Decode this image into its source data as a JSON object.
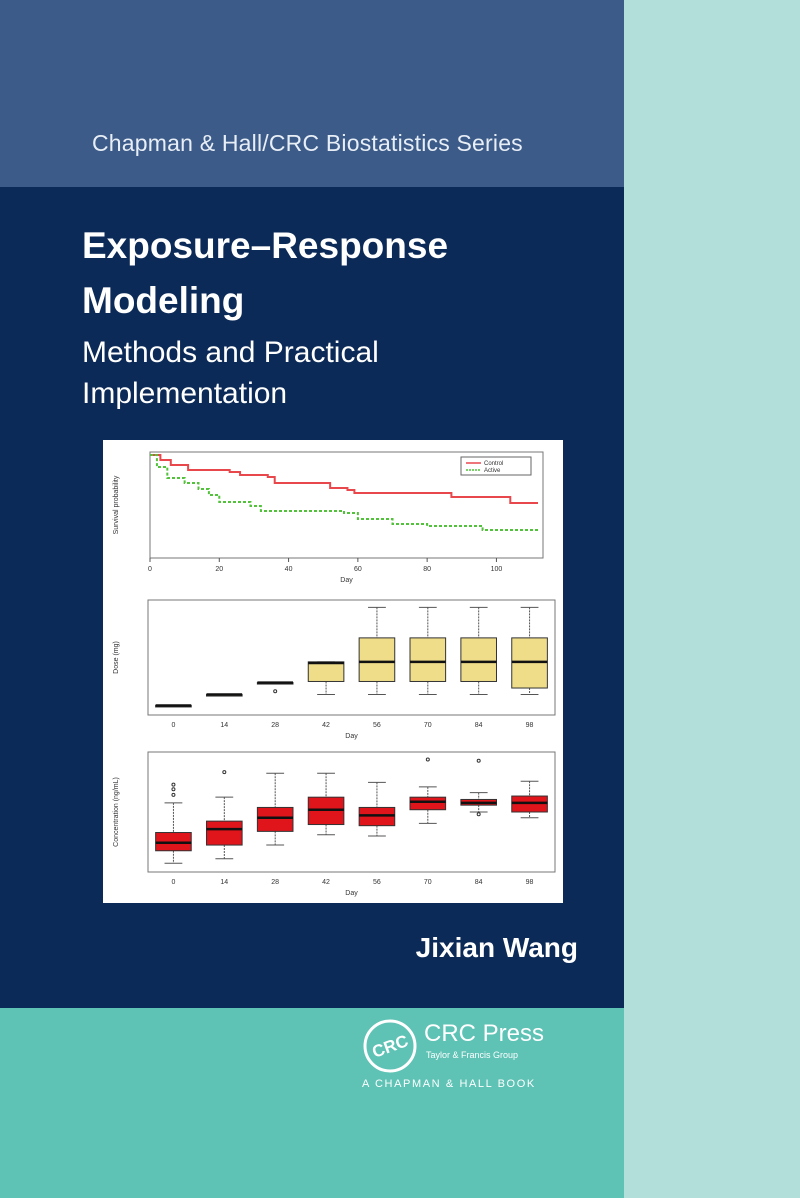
{
  "series": "Chapman & Hall/CRC Biostatistics Series",
  "title_line1": "Exposure–Response",
  "title_line2": "Modeling",
  "subtitle_line1": "Methods and Practical",
  "subtitle_line2": "Implementation",
  "author": "Jixian Wang",
  "publisher": {
    "name": "CRC Press",
    "tagline": "Taylor & Francis Group",
    "imprint": "A CHAPMAN & HALL BOOK",
    "logo_text": "CRC"
  },
  "colors": {
    "top_band": "#3c5b88",
    "navy": "#0c2a57",
    "teal": "#5ec2b5",
    "strip": "#b3dfdb",
    "control": "#e8474c",
    "active": "#52c23a",
    "dose_box": "#efdd8a",
    "conc_box": "#e0141b"
  },
  "chart_data": [
    {
      "type": "line",
      "xlabel": "Day",
      "ylabel": "Survival probability",
      "xticks": [
        0,
        20,
        40,
        60,
        80,
        100
      ],
      "xlim": [
        0,
        112
      ],
      "ylim": [
        0,
        1
      ],
      "legend": "top-right",
      "series": [
        {
          "name": "Control",
          "step": [
            [
              0,
              1
            ],
            [
              3,
              0.95
            ],
            [
              6,
              0.9
            ],
            [
              11,
              0.85
            ],
            [
              23,
              0.83
            ],
            [
              26,
              0.8
            ],
            [
              34,
              0.78
            ],
            [
              36,
              0.72
            ],
            [
              52,
              0.67
            ],
            [
              57,
              0.65
            ],
            [
              59,
              0.62
            ],
            [
              84,
              0.62
            ],
            [
              87,
              0.58
            ],
            [
              99,
              0.58
            ],
            [
              104,
              0.52
            ],
            [
              112,
              0.52
            ]
          ]
        },
        {
          "name": "Active",
          "step": [
            [
              0,
              1
            ],
            [
              2,
              0.88
            ],
            [
              5,
              0.77
            ],
            [
              10,
              0.72
            ],
            [
              14,
              0.66
            ],
            [
              17,
              0.6
            ],
            [
              20,
              0.53
            ],
            [
              29,
              0.49
            ],
            [
              32,
              0.44
            ],
            [
              56,
              0.42
            ],
            [
              60,
              0.36
            ],
            [
              70,
              0.31
            ],
            [
              80,
              0.29
            ],
            [
              96,
              0.25
            ],
            [
              112,
              0.23
            ]
          ]
        }
      ]
    },
    {
      "type": "box",
      "xlabel": "Day",
      "ylabel": "Dose (mg)",
      "categories": [
        "0",
        "14",
        "28",
        "42",
        "56",
        "70",
        "84",
        "98"
      ],
      "ylim": [
        0,
        100
      ],
      "boxes": [
        {
          "lo": 6,
          "q1": 6,
          "med": 6,
          "q3": 6,
          "hi": 6,
          "out": []
        },
        {
          "lo": 16,
          "q1": 16,
          "med": 16,
          "q3": 16,
          "hi": 16,
          "out": []
        },
        {
          "lo": 27,
          "q1": 27,
          "med": 27,
          "q3": 27,
          "hi": 27,
          "out": [
            19
          ]
        },
        {
          "lo": 16,
          "q1": 28,
          "med": 45,
          "q3": 46,
          "hi": 46,
          "out": []
        },
        {
          "lo": 16,
          "q1": 28,
          "med": 46,
          "q3": 68,
          "hi": 96,
          "out": []
        },
        {
          "lo": 16,
          "q1": 28,
          "med": 46,
          "q3": 68,
          "hi": 96,
          "out": []
        },
        {
          "lo": 16,
          "q1": 28,
          "med": 46,
          "q3": 68,
          "hi": 96,
          "out": []
        },
        {
          "lo": 16,
          "q1": 22,
          "med": 46,
          "q3": 68,
          "hi": 96,
          "out": []
        }
      ]
    },
    {
      "type": "box",
      "xlabel": "Day",
      "ylabel": "Concentration (ng/mL)",
      "categories": [
        "0",
        "14",
        "28",
        "42",
        "56",
        "70",
        "84",
        "98"
      ],
      "ylim": [
        0,
        100
      ],
      "boxes": [
        {
          "lo": 5,
          "q1": 16,
          "med": 23,
          "q3": 32,
          "hi": 58,
          "out": [
            65,
            70,
            74
          ]
        },
        {
          "lo": 9,
          "q1": 21,
          "med": 35,
          "q3": 42,
          "hi": 63,
          "out": [
            85
          ]
        },
        {
          "lo": 21,
          "q1": 33,
          "med": 45,
          "q3": 54,
          "hi": 84,
          "out": []
        },
        {
          "lo": 30,
          "q1": 39,
          "med": 52,
          "q3": 63,
          "hi": 84,
          "out": []
        },
        {
          "lo": 29,
          "q1": 38,
          "med": 47,
          "q3": 54,
          "hi": 76,
          "out": []
        },
        {
          "lo": 40,
          "q1": 52,
          "med": 59,
          "q3": 63,
          "hi": 72,
          "out": [
            96
          ]
        },
        {
          "lo": 50,
          "q1": 56,
          "med": 58,
          "q3": 61,
          "hi": 67,
          "out": [
            48,
            95
          ]
        },
        {
          "lo": 45,
          "q1": 50,
          "med": 58,
          "q3": 64,
          "hi": 77,
          "out": []
        }
      ]
    }
  ]
}
